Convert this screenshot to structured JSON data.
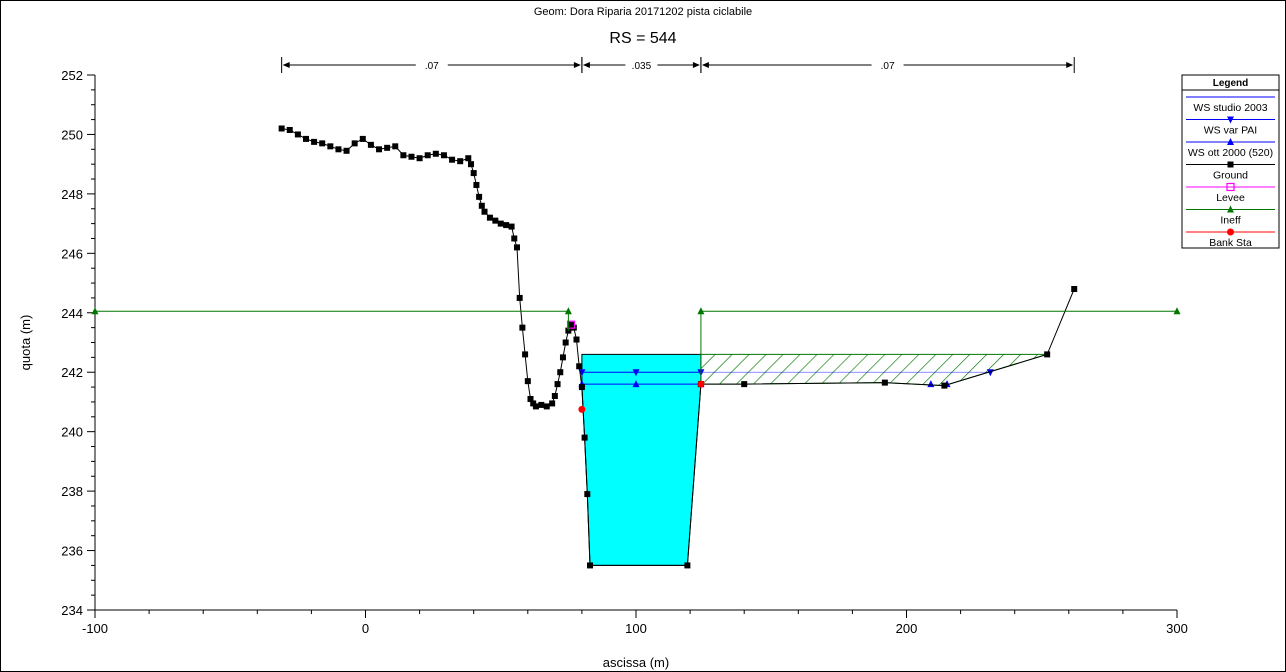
{
  "chart_data": {
    "type": "line",
    "subtitle": "Geom: Dora Riparia 20171202 pista ciclabile",
    "title": "RS = 544",
    "xlabel": "ascissa (m)",
    "ylabel": "quota (m)",
    "xlim": [
      -100,
      300
    ],
    "ylim": [
      234,
      252
    ],
    "x_ticks": [
      -100,
      0,
      100,
      200,
      300
    ],
    "y_ticks": [
      234,
      236,
      238,
      240,
      242,
      244,
      246,
      248,
      250,
      252
    ],
    "manning": [
      {
        "label": ".07",
        "from": -31,
        "to": 80
      },
      {
        "label": ".035",
        "from": 80,
        "to": 124
      },
      {
        "label": ".07",
        "from": 124,
        "to": 262
      }
    ],
    "legend_title": "Legend",
    "legend_position": "top-right",
    "series": [
      {
        "name": "WS studio 2003",
        "color": "#0000ff",
        "marker": "none",
        "points": [
          [
            80,
            242.6
          ],
          [
            124,
            242.6
          ]
        ]
      },
      {
        "name": "WS var PAI",
        "color": "#0000ff",
        "marker": "triangle-down",
        "points": [
          [
            80,
            242.0
          ],
          [
            100,
            242.0
          ],
          [
            124,
            242.0
          ],
          [
            231,
            242.0
          ]
        ]
      },
      {
        "name": "WS ott 2000 (520)",
        "color": "#0000ff",
        "marker": "triangle-up",
        "points": [
          [
            80,
            241.6
          ],
          [
            100,
            241.6
          ],
          [
            124,
            241.6
          ],
          [
            209,
            241.6
          ],
          [
            215,
            241.6
          ]
        ]
      },
      {
        "name": "Ground",
        "color": "#000000",
        "marker": "square",
        "points": [
          [
            -31,
            250.2
          ],
          [
            -28,
            250.15
          ],
          [
            -25,
            250.0
          ],
          [
            -22,
            249.85
          ],
          [
            -19,
            249.75
          ],
          [
            -16,
            249.7
          ],
          [
            -13,
            249.6
          ],
          [
            -10,
            249.5
          ],
          [
            -7,
            249.45
          ],
          [
            -4,
            249.7
          ],
          [
            -1,
            249.85
          ],
          [
            2,
            249.65
          ],
          [
            5,
            249.5
          ],
          [
            8,
            249.55
          ],
          [
            11,
            249.6
          ],
          [
            14,
            249.3
          ],
          [
            17,
            249.25
          ],
          [
            20,
            249.2
          ],
          [
            23,
            249.3
          ],
          [
            26,
            249.35
          ],
          [
            29,
            249.3
          ],
          [
            32,
            249.15
          ],
          [
            35,
            249.1
          ],
          [
            38,
            249.2
          ],
          [
            39,
            249.0
          ],
          [
            40,
            248.7
          ],
          [
            41,
            248.3
          ],
          [
            42,
            247.9
          ],
          [
            43,
            247.6
          ],
          [
            44,
            247.4
          ],
          [
            46,
            247.2
          ],
          [
            48,
            247.1
          ],
          [
            50,
            247.0
          ],
          [
            52,
            246.95
          ],
          [
            54,
            246.9
          ],
          [
            55,
            246.5
          ],
          [
            56,
            246.2
          ],
          [
            57,
            244.5
          ],
          [
            58,
            243.5
          ],
          [
            59,
            242.6
          ],
          [
            60,
            241.7
          ],
          [
            61,
            241.1
          ],
          [
            62,
            240.95
          ],
          [
            63,
            240.85
          ],
          [
            65,
            240.9
          ],
          [
            67,
            240.85
          ],
          [
            69,
            240.95
          ],
          [
            70,
            241.2
          ],
          [
            71,
            241.6
          ],
          [
            72,
            242.0
          ],
          [
            73,
            242.5
          ],
          [
            74,
            243.0
          ],
          [
            75,
            243.4
          ],
          [
            76,
            243.6
          ],
          [
            77,
            243.5
          ],
          [
            78,
            243.1
          ],
          [
            79,
            242.2
          ],
          [
            80,
            241.5
          ],
          [
            81,
            239.8
          ],
          [
            82,
            237.9
          ],
          [
            83,
            235.5
          ],
          [
            119,
            235.5
          ],
          [
            124,
            241.6
          ],
          [
            140,
            241.6
          ],
          [
            192,
            241.65
          ],
          [
            214,
            241.55
          ],
          [
            252,
            242.6
          ],
          [
            262,
            244.8
          ]
        ]
      },
      {
        "name": "Levee",
        "color": "#ff00ff",
        "marker": "square-open",
        "points": [
          [
            76,
            243.6
          ]
        ]
      },
      {
        "name": "Ineff",
        "color": "#007700",
        "marker": "triangle-up",
        "points": [
          [
            -100,
            244.05
          ],
          [
            75,
            244.05
          ],
          [
            124,
            244.05
          ],
          [
            300,
            244.05
          ]
        ]
      },
      {
        "name": "Bank Sta",
        "color": "#ff0000",
        "marker": "circle",
        "points": [
          [
            80,
            240.75
          ],
          [
            124,
            241.6
          ]
        ]
      }
    ],
    "water_fill": {
      "color": "#00ffff",
      "level": 242.6
    },
    "ineffective_hatch": {
      "color": "#007700"
    }
  }
}
